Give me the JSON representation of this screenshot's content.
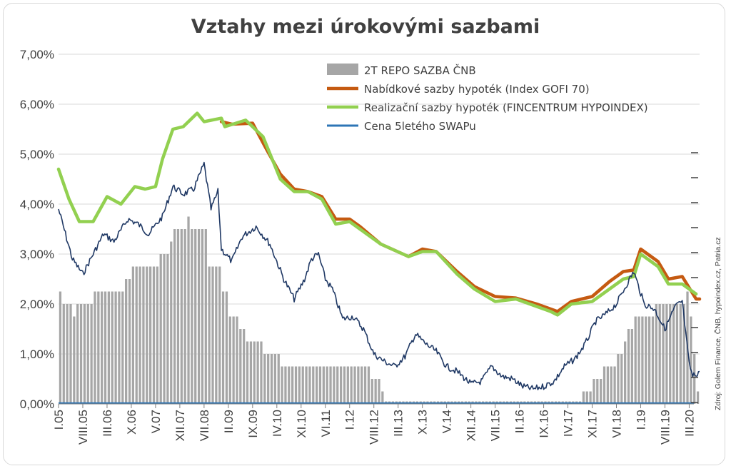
{
  "chart_data": {
    "type": "bar+line",
    "title": "Vztahy mezi úrokovými sazbami",
    "ylim": [
      0,
      7
    ],
    "yticks": [
      "0,00%",
      "1,00%",
      "2,00%",
      "3,00%",
      "4,00%",
      "5,00%",
      "6,00%",
      "7,00%"
    ],
    "xtick_labels": [
      "I.05",
      "VIII.05",
      "III.06",
      "X.06",
      "V.07",
      "XII.07",
      "VII.08",
      "II.09",
      "IX.09",
      "IV.10",
      "XI.10",
      "VI.11",
      "I.12",
      "VIII.12",
      "III.13",
      "X.13",
      "V.14",
      "XII.14",
      "VII.15",
      "II.16",
      "IX.16",
      "IV.17",
      "XI.17",
      "VI.18",
      "I.19",
      "VIII.19",
      "III.20"
    ],
    "x_range": [
      "2005-01",
      "2020-06"
    ],
    "legend_position": "top-right",
    "grid": true,
    "source": "Zdroj: Golem Finance, ČNB, hypoindex.cz,  Patria.cz",
    "series": [
      {
        "name": "2T REPO SAZBA ČNB",
        "kind": "bar",
        "color": "#a6a6a6",
        "steps": [
          [
            "2005-01",
            2.25
          ],
          [
            "2005-02",
            2.0
          ],
          [
            "2005-05",
            1.75
          ],
          [
            "2005-06",
            2.0
          ],
          [
            "2005-11",
            2.25
          ],
          [
            "2006-08",
            2.5
          ],
          [
            "2006-10",
            2.75
          ],
          [
            "2007-06",
            3.0
          ],
          [
            "2007-09",
            3.25
          ],
          [
            "2007-10",
            3.5
          ],
          [
            "2008-02",
            3.75
          ],
          [
            "2008-03",
            3.5
          ],
          [
            "2008-08",
            2.75
          ],
          [
            "2008-12",
            2.25
          ],
          [
            "2009-02",
            1.75
          ],
          [
            "2009-05",
            1.5
          ],
          [
            "2009-07",
            1.25
          ],
          [
            "2009-12",
            1.0
          ],
          [
            "2010-05",
            0.75
          ],
          [
            "2012-07",
            0.5
          ],
          [
            "2012-10",
            0.25
          ],
          [
            "2012-11",
            0.05
          ],
          [
            "2017-08",
            0.25
          ],
          [
            "2017-11",
            0.5
          ],
          [
            "2018-02",
            0.75
          ],
          [
            "2018-06",
            1.0
          ],
          [
            "2018-08",
            1.25
          ],
          [
            "2018-09",
            1.5
          ],
          [
            "2018-11",
            1.75
          ],
          [
            "2019-05",
            2.0
          ],
          [
            "2020-02",
            2.25
          ],
          [
            "2020-03",
            1.75
          ],
          [
            "2020-04",
            1.0
          ],
          [
            "2020-05",
            0.25
          ]
        ],
        "end": "2020-06"
      },
      {
        "name": "Nabídkové sazby hypoték (Index GOFI 70)",
        "kind": "line",
        "color": "#c55a11",
        "points": [
          [
            "2008-12",
            5.65
          ],
          [
            "2009-03",
            5.6
          ],
          [
            "2009-09",
            5.62
          ],
          [
            "2010-01",
            5.1
          ],
          [
            "2010-05",
            4.6
          ],
          [
            "2010-09",
            4.3
          ],
          [
            "2011-01",
            4.25
          ],
          [
            "2011-05",
            4.15
          ],
          [
            "2011-09",
            3.7
          ],
          [
            "2012-01",
            3.7
          ],
          [
            "2012-04",
            3.55
          ],
          [
            "2012-10",
            3.2
          ],
          [
            "2013-06",
            2.95
          ],
          [
            "2013-10",
            3.1
          ],
          [
            "2014-02",
            3.05
          ],
          [
            "2014-08",
            2.65
          ],
          [
            "2015-01",
            2.35
          ],
          [
            "2015-07",
            2.15
          ],
          [
            "2016-01",
            2.12
          ],
          [
            "2016-07",
            2.0
          ],
          [
            "2016-11",
            1.9
          ],
          [
            "2017-01",
            1.85
          ],
          [
            "2017-05",
            2.05
          ],
          [
            "2017-11",
            2.15
          ],
          [
            "2018-04",
            2.45
          ],
          [
            "2018-08",
            2.65
          ],
          [
            "2018-11",
            2.68
          ],
          [
            "2019-01",
            3.1
          ],
          [
            "2019-06",
            2.85
          ],
          [
            "2019-09",
            2.5
          ],
          [
            "2020-01",
            2.55
          ],
          [
            "2020-05",
            2.1
          ],
          [
            "2020-06",
            2.1
          ]
        ]
      },
      {
        "name": "Realizační sazby hypoték (FINCENTRUM HYPOINDEX)",
        "kind": "line",
        "color": "#92d050",
        "points": [
          [
            "2005-01",
            4.7
          ],
          [
            "2005-04",
            4.1
          ],
          [
            "2005-07",
            3.65
          ],
          [
            "2005-11",
            3.65
          ],
          [
            "2006-03",
            4.15
          ],
          [
            "2006-07",
            4.0
          ],
          [
            "2006-11",
            4.35
          ],
          [
            "2007-02",
            4.3
          ],
          [
            "2007-05",
            4.35
          ],
          [
            "2007-07",
            4.9
          ],
          [
            "2007-10",
            5.5
          ],
          [
            "2008-01",
            5.55
          ],
          [
            "2008-05",
            5.82
          ],
          [
            "2008-07",
            5.65
          ],
          [
            "2008-12",
            5.72
          ],
          [
            "2009-01",
            5.55
          ],
          [
            "2009-07",
            5.68
          ],
          [
            "2009-12",
            5.35
          ],
          [
            "2010-05",
            4.5
          ],
          [
            "2010-09",
            4.25
          ],
          [
            "2011-01",
            4.25
          ],
          [
            "2011-05",
            4.1
          ],
          [
            "2011-09",
            3.6
          ],
          [
            "2012-01",
            3.65
          ],
          [
            "2012-04",
            3.5
          ],
          [
            "2012-10",
            3.2
          ],
          [
            "2013-06",
            2.95
          ],
          [
            "2013-10",
            3.05
          ],
          [
            "2014-02",
            3.05
          ],
          [
            "2014-08",
            2.6
          ],
          [
            "2015-01",
            2.3
          ],
          [
            "2015-07",
            2.05
          ],
          [
            "2016-01",
            2.1
          ],
          [
            "2016-07",
            1.95
          ],
          [
            "2016-11",
            1.85
          ],
          [
            "2017-01",
            1.78
          ],
          [
            "2017-05",
            2.0
          ],
          [
            "2017-11",
            2.05
          ],
          [
            "2018-04",
            2.3
          ],
          [
            "2018-08",
            2.5
          ],
          [
            "2018-11",
            2.55
          ],
          [
            "2019-01",
            3.0
          ],
          [
            "2019-06",
            2.75
          ],
          [
            "2019-09",
            2.4
          ],
          [
            "2020-01",
            2.4
          ],
          [
            "2020-05",
            2.2
          ]
        ]
      },
      {
        "name": "Cena 5letého SWAPu",
        "kind": "line",
        "color": "#1f3864",
        "legend_color": "#2e75b6",
        "points": [
          [
            "2005-01",
            3.9
          ],
          [
            "2005-05",
            2.9
          ],
          [
            "2005-08",
            2.6
          ],
          [
            "2005-11",
            3.0
          ],
          [
            "2006-02",
            3.4
          ],
          [
            "2006-05",
            3.25
          ],
          [
            "2006-09",
            3.7
          ],
          [
            "2006-12",
            3.6
          ],
          [
            "2007-03",
            3.4
          ],
          [
            "2007-07",
            3.75
          ],
          [
            "2007-10",
            4.35
          ],
          [
            "2008-01",
            4.2
          ],
          [
            "2008-04",
            4.3
          ],
          [
            "2008-07",
            4.8
          ],
          [
            "2008-09",
            3.9
          ],
          [
            "2008-11",
            4.25
          ],
          [
            "2008-12",
            3.1
          ],
          [
            "2009-03",
            2.85
          ],
          [
            "2009-06",
            3.35
          ],
          [
            "2009-10",
            3.55
          ],
          [
            "2010-02",
            3.2
          ],
          [
            "2010-06",
            2.5
          ],
          [
            "2010-09",
            2.1
          ],
          [
            "2010-12",
            2.5
          ],
          [
            "2011-02",
            2.9
          ],
          [
            "2011-04",
            3.0
          ],
          [
            "2011-06",
            2.5
          ],
          [
            "2011-08",
            2.3
          ],
          [
            "2011-11",
            1.7
          ],
          [
            "2012-02",
            1.75
          ],
          [
            "2012-05",
            1.5
          ],
          [
            "2012-08",
            1.0
          ],
          [
            "2012-11",
            0.85
          ],
          [
            "2013-02",
            0.75
          ],
          [
            "2013-05",
            0.95
          ],
          [
            "2013-08",
            1.4
          ],
          [
            "2013-11",
            1.2
          ],
          [
            "2014-02",
            1.05
          ],
          [
            "2014-05",
            0.75
          ],
          [
            "2014-08",
            0.65
          ],
          [
            "2014-12",
            0.4
          ],
          [
            "2015-03",
            0.45
          ],
          [
            "2015-06",
            0.75
          ],
          [
            "2015-09",
            0.55
          ],
          [
            "2015-12",
            0.5
          ],
          [
            "2016-03",
            0.35
          ],
          [
            "2016-06",
            0.3
          ],
          [
            "2016-09",
            0.35
          ],
          [
            "2016-12",
            0.45
          ],
          [
            "2017-03",
            0.75
          ],
          [
            "2017-06",
            0.9
          ],
          [
            "2017-09",
            1.2
          ],
          [
            "2017-12",
            1.65
          ],
          [
            "2018-03",
            1.8
          ],
          [
            "2018-06",
            2.0
          ],
          [
            "2018-09",
            2.4
          ],
          [
            "2018-11",
            2.65
          ],
          [
            "2019-02",
            2.0
          ],
          [
            "2019-05",
            1.9
          ],
          [
            "2019-08",
            1.5
          ],
          [
            "2019-11",
            1.95
          ],
          [
            "2020-01",
            2.05
          ],
          [
            "2020-02",
            1.4
          ],
          [
            "2020-03",
            0.8
          ],
          [
            "2020-04",
            0.55
          ],
          [
            "2020-06",
            0.65
          ]
        ]
      }
    ]
  }
}
